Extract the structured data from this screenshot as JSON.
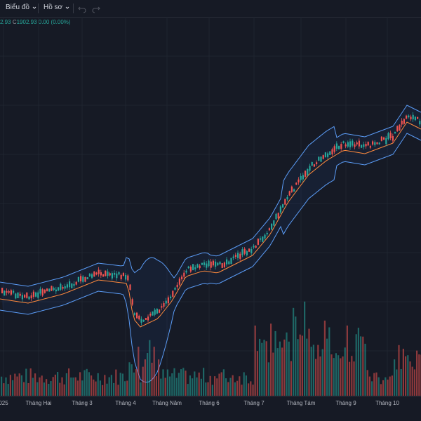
{
  "toolbar": {
    "chart_menu": "Biểu đồ",
    "profile_menu": "Hồ sơ",
    "undo_icon": "undo-icon",
    "redo_icon": "redo-icon"
  },
  "legend": {
    "partial_value": "2.93",
    "close_label": "C",
    "close_value": "1902.93",
    "change": "0.00 (0.00%)"
  },
  "colors": {
    "background": "#161a25",
    "up": "#26a69a",
    "down": "#ef5350",
    "band": "#5b9cf6",
    "basis": "#ff8a3d"
  },
  "xaxis": {
    "labels": [
      "025",
      "Tháng Hai",
      "Tháng 3",
      "Tháng 4",
      "Tháng Năm",
      "Tháng 6",
      "Tháng 7",
      "Tháng Tám",
      "Tháng 9",
      "Tháng 10"
    ]
  }
}
